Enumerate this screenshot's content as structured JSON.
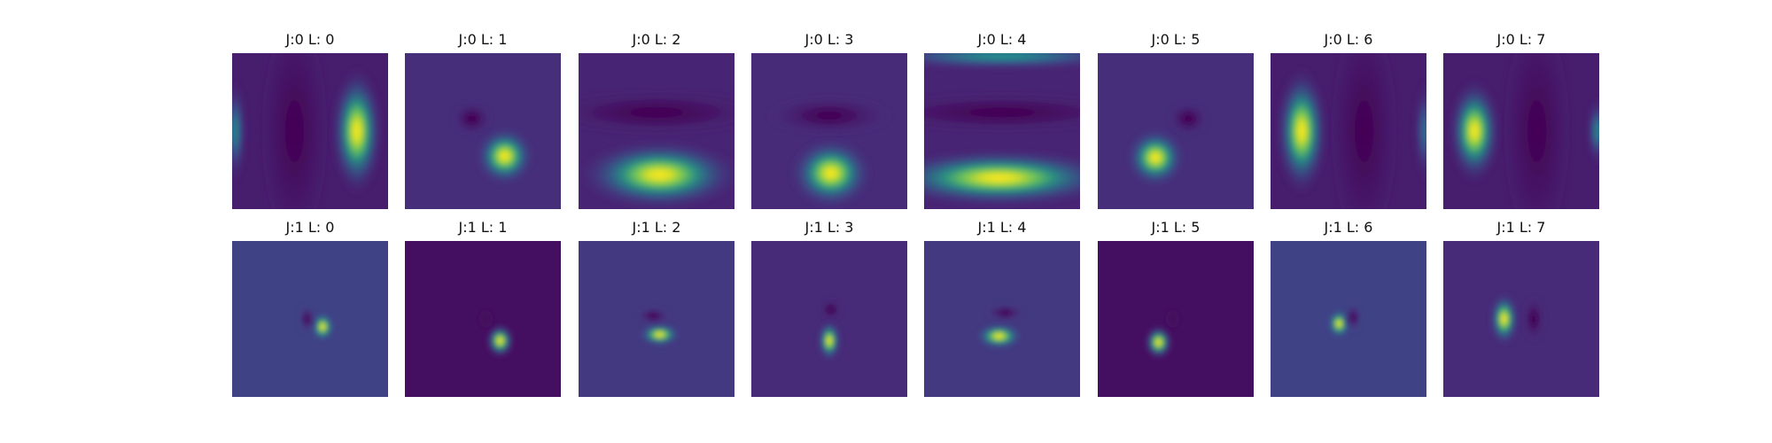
{
  "colors": {
    "colormap": "viridis",
    "background": "#ffffff",
    "title_text": "#111111"
  },
  "chart_data": {
    "type": "heatmap",
    "grid": false,
    "layout": "2 rows x 8 columns",
    "panels": [
      {
        "title": "J:0 L: 0",
        "bg": 0.08,
        "blobs": [
          {
            "x": 0.8,
            "y": 0.5,
            "rx": 0.09,
            "ry": 0.22,
            "v": 1.0
          },
          {
            "x": 0.4,
            "y": 0.5,
            "rx": 0.12,
            "ry": 0.4,
            "v": 0.0
          },
          {
            "x": 0.02,
            "y": 0.5,
            "rx": 0.04,
            "ry": 0.18,
            "v": 0.45
          }
        ]
      },
      {
        "title": "J:0 L: 1",
        "bg": 0.13,
        "blobs": [
          {
            "x": 0.64,
            "y": 0.66,
            "rx": 0.1,
            "ry": 0.1,
            "v": 1.0
          },
          {
            "x": 0.43,
            "y": 0.42,
            "rx": 0.07,
            "ry": 0.06,
            "v": 0.0
          }
        ]
      },
      {
        "title": "J:0 L: 2",
        "bg": 0.1,
        "blobs": [
          {
            "x": 0.52,
            "y": 0.78,
            "rx": 0.28,
            "ry": 0.12,
            "v": 1.0
          },
          {
            "x": 0.5,
            "y": 0.38,
            "rx": 0.4,
            "ry": 0.08,
            "v": 0.0
          }
        ]
      },
      {
        "title": "J:0 L: 3",
        "bg": 0.12,
        "blobs": [
          {
            "x": 0.51,
            "y": 0.77,
            "rx": 0.14,
            "ry": 0.12,
            "v": 1.0
          },
          {
            "x": 0.5,
            "y": 0.4,
            "rx": 0.22,
            "ry": 0.07,
            "v": 0.0
          }
        ]
      },
      {
        "title": "J:0 L: 4",
        "bg": 0.1,
        "blobs": [
          {
            "x": 0.48,
            "y": 0.8,
            "rx": 0.42,
            "ry": 0.1,
            "v": 1.0
          },
          {
            "x": 0.5,
            "y": 0.38,
            "rx": 0.5,
            "ry": 0.07,
            "v": 0.0
          },
          {
            "x": 0.5,
            "y": 0.02,
            "rx": 0.5,
            "ry": 0.05,
            "v": 0.5
          }
        ]
      },
      {
        "title": "J:0 L: 5",
        "bg": 0.13,
        "blobs": [
          {
            "x": 0.37,
            "y": 0.67,
            "rx": 0.1,
            "ry": 0.1,
            "v": 1.0
          },
          {
            "x": 0.58,
            "y": 0.42,
            "rx": 0.07,
            "ry": 0.06,
            "v": 0.0
          }
        ]
      },
      {
        "title": "J:0 L: 6",
        "bg": 0.08,
        "blobs": [
          {
            "x": 0.2,
            "y": 0.5,
            "rx": 0.09,
            "ry": 0.22,
            "v": 1.0
          },
          {
            "x": 0.6,
            "y": 0.5,
            "rx": 0.12,
            "ry": 0.4,
            "v": 0.0
          },
          {
            "x": 0.99,
            "y": 0.5,
            "rx": 0.04,
            "ry": 0.18,
            "v": 0.35
          }
        ]
      },
      {
        "title": "J:0 L: 7",
        "bg": 0.08,
        "blobs": [
          {
            "x": 0.2,
            "y": 0.5,
            "rx": 0.09,
            "ry": 0.18,
            "v": 1.0
          },
          {
            "x": 0.6,
            "y": 0.5,
            "rx": 0.12,
            "ry": 0.4,
            "v": 0.0
          },
          {
            "x": 0.99,
            "y": 0.5,
            "rx": 0.04,
            "ry": 0.12,
            "v": 0.45
          }
        ]
      },
      {
        "title": "J:1 L: 0",
        "bg": 0.2,
        "blobs": [
          {
            "x": 0.58,
            "y": 0.55,
            "rx": 0.04,
            "ry": 0.05,
            "v": 1.0
          },
          {
            "x": 0.48,
            "y": 0.5,
            "rx": 0.03,
            "ry": 0.05,
            "v": 0.0
          }
        ]
      },
      {
        "title": "J:1 L: 1",
        "bg": 0.04,
        "blobs": [
          {
            "x": 0.61,
            "y": 0.64,
            "rx": 0.05,
            "ry": 0.06,
            "v": 1.0
          },
          {
            "x": 0.52,
            "y": 0.5,
            "rx": 0.03,
            "ry": 0.04,
            "v": 0.02
          }
        ]
      },
      {
        "title": "J:1 L: 2",
        "bg": 0.17,
        "blobs": [
          {
            "x": 0.52,
            "y": 0.6,
            "rx": 0.07,
            "ry": 0.04,
            "v": 1.0
          },
          {
            "x": 0.48,
            "y": 0.48,
            "rx": 0.06,
            "ry": 0.03,
            "v": 0.0
          }
        ]
      },
      {
        "title": "J:1 L: 3",
        "bg": 0.12,
        "blobs": [
          {
            "x": 0.5,
            "y": 0.64,
            "rx": 0.04,
            "ry": 0.07,
            "v": 1.0
          },
          {
            "x": 0.51,
            "y": 0.44,
            "rx": 0.04,
            "ry": 0.04,
            "v": 0.0
          }
        ]
      },
      {
        "title": "J:1 L: 4",
        "bg": 0.17,
        "blobs": [
          {
            "x": 0.48,
            "y": 0.61,
            "rx": 0.08,
            "ry": 0.045,
            "v": 1.0
          },
          {
            "x": 0.52,
            "y": 0.46,
            "rx": 0.07,
            "ry": 0.03,
            "v": 0.0
          }
        ]
      },
      {
        "title": "J:1 L: 5",
        "bg": 0.04,
        "blobs": [
          {
            "x": 0.39,
            "y": 0.65,
            "rx": 0.05,
            "ry": 0.06,
            "v": 1.0
          },
          {
            "x": 0.48,
            "y": 0.5,
            "rx": 0.03,
            "ry": 0.04,
            "v": 0.02
          }
        ]
      },
      {
        "title": "J:1 L: 6",
        "bg": 0.2,
        "blobs": [
          {
            "x": 0.44,
            "y": 0.53,
            "rx": 0.04,
            "ry": 0.05,
            "v": 1.0
          },
          {
            "x": 0.53,
            "y": 0.49,
            "rx": 0.03,
            "ry": 0.05,
            "v": 0.0
          }
        ]
      },
      {
        "title": "J:1 L: 7",
        "bg": 0.12,
        "blobs": [
          {
            "x": 0.39,
            "y": 0.5,
            "rx": 0.05,
            "ry": 0.09,
            "v": 1.0
          },
          {
            "x": 0.58,
            "y": 0.5,
            "rx": 0.04,
            "ry": 0.08,
            "v": 0.0
          }
        ]
      }
    ]
  }
}
